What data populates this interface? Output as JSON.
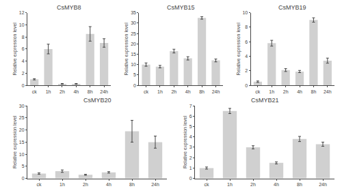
{
  "chart_data": [
    {
      "type": "bar",
      "title": "CsMYB8",
      "ylabel": "Relative expression level",
      "categories": [
        "ck",
        "1h",
        "2h",
        "4h",
        "8h",
        "24h"
      ],
      "values": [
        1.0,
        6.0,
        0.25,
        0.25,
        8.5,
        7.0
      ],
      "errors": [
        0.1,
        0.8,
        0.05,
        0.05,
        1.2,
        0.7
      ],
      "color": "#d0d0d0",
      "ylim": [
        0,
        12
      ],
      "yticks": [
        0,
        2,
        4,
        6,
        8,
        10,
        12
      ],
      "grid": false
    },
    {
      "type": "bar",
      "title": "CsMYB15",
      "ylabel": "Relative expression level",
      "categories": [
        "ck",
        "1h",
        "2h",
        "4h",
        "8h",
        "24h"
      ],
      "values": [
        10.0,
        9.0,
        16.5,
        13.0,
        32.5,
        12.0
      ],
      "errors": [
        0.8,
        0.6,
        0.9,
        0.8,
        0.6,
        0.7
      ],
      "color": "#d0d0d0",
      "ylim": [
        0,
        35
      ],
      "yticks": [
        0,
        5,
        10,
        15,
        20,
        25,
        30,
        35
      ],
      "grid": false
    },
    {
      "type": "bar",
      "title": "CsMYB19",
      "ylabel": "Relative expression level",
      "categories": [
        "ck",
        "1h",
        "2h",
        "4h",
        "8h",
        "24h"
      ],
      "values": [
        0.5,
        5.8,
        2.1,
        1.9,
        9.0,
        3.4
      ],
      "errors": [
        0.1,
        0.4,
        0.2,
        0.15,
        0.3,
        0.35
      ],
      "color": "#d0d0d0",
      "ylim": [
        0,
        10
      ],
      "yticks": [
        0,
        2,
        4,
        6,
        8,
        10
      ],
      "grid": false
    },
    {
      "type": "bar",
      "title": "CsMYB20",
      "ylabel": "Relative expression level",
      "categories": [
        "ck",
        "1h",
        "2h",
        "4h",
        "8h",
        "24h"
      ],
      "values": [
        2.0,
        3.0,
        1.5,
        2.5,
        19.5,
        15.0
      ],
      "errors": [
        0.3,
        0.5,
        0.2,
        0.3,
        4.5,
        2.5
      ],
      "color": "#d0d0d0",
      "ylim": [
        0,
        30
      ],
      "yticks": [
        0,
        5,
        10,
        15,
        20,
        25,
        30
      ],
      "grid": false
    },
    {
      "type": "bar",
      "title": "CsMYB21",
      "ylabel": "Relative expression level",
      "categories": [
        "ck",
        "1h",
        "2h",
        "4h",
        "8h",
        "24h"
      ],
      "values": [
        1.0,
        6.5,
        3.0,
        1.5,
        3.8,
        3.3
      ],
      "errors": [
        0.1,
        0.25,
        0.15,
        0.1,
        0.25,
        0.2
      ],
      "color": "#d0d0d0",
      "ylim": [
        0,
        7
      ],
      "yticks": [
        0,
        1,
        2,
        3,
        4,
        5,
        6,
        7
      ],
      "grid": false
    }
  ]
}
